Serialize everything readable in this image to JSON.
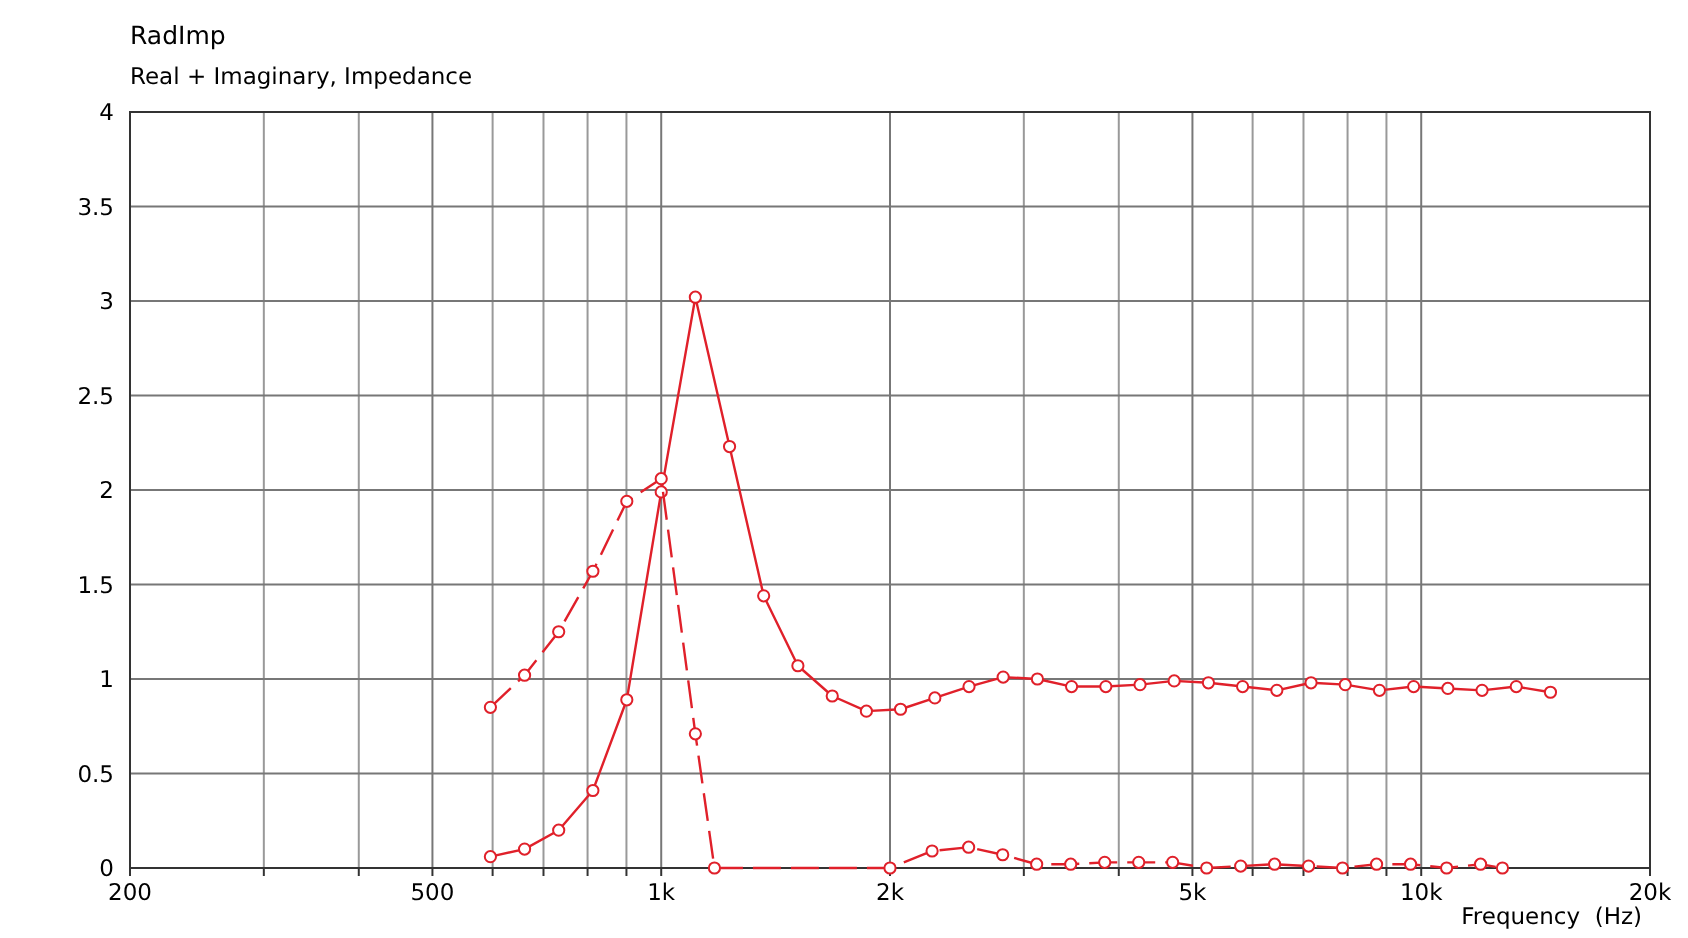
{
  "chart_data": {
    "type": "line",
    "title": "RadImp",
    "subtitle": "Real + Imaginary, Impedance",
    "xlabel": "Frequency  (Hz)",
    "log": "x",
    "grid": true,
    "marker": "circle",
    "xlim": [
      200,
      20000
    ],
    "ylim": [
      0,
      4
    ],
    "xticks": [
      {
        "value": 200,
        "label": "200"
      },
      {
        "value": 300,
        "label": null
      },
      {
        "value": 400,
        "label": null
      },
      {
        "value": 500,
        "label": "500"
      },
      {
        "value": 600,
        "label": null
      },
      {
        "value": 700,
        "label": null
      },
      {
        "value": 800,
        "label": null
      },
      {
        "value": 900,
        "label": null
      },
      {
        "value": 1000,
        "label": "1k"
      },
      {
        "value": 2000,
        "label": "2k"
      },
      {
        "value": 3000,
        "label": null
      },
      {
        "value": 4000,
        "label": null
      },
      {
        "value": 5000,
        "label": "5k"
      },
      {
        "value": 6000,
        "label": null
      },
      {
        "value": 7000,
        "label": null
      },
      {
        "value": 8000,
        "label": null
      },
      {
        "value": 9000,
        "label": null
      },
      {
        "value": 10000,
        "label": "10k"
      },
      {
        "value": 20000,
        "label": "20k"
      }
    ],
    "yticks": [
      0,
      0.5,
      1,
      1.5,
      2,
      2.5,
      3,
      3.5,
      4
    ],
    "series": [
      {
        "color": "#e0202a",
        "line_style": "solid",
        "x": [
          596,
          661,
          733,
          813,
          901,
          1000,
          1109,
          1230,
          1364,
          1513,
          1679,
          1862,
          2065,
          2291,
          2541,
          2818,
          3126,
          3467,
          3846,
          4266,
          4731,
          5248,
          5821,
          6457,
          7162,
          7944,
          8811,
          9773,
          10840,
          12024,
          13337,
          14793
        ],
        "values": [
          0.06,
          0.1,
          0.2,
          0.41,
          0.89,
          1.99,
          3.02,
          2.23,
          1.44,
          1.07,
          0.91,
          0.83,
          0.84,
          0.9,
          0.96,
          1.01,
          1.0,
          0.96,
          0.96,
          0.97,
          0.99,
          0.98,
          0.96,
          0.94,
          0.98,
          0.97,
          0.94,
          0.96,
          0.95,
          0.94,
          0.96,
          0.93
        ]
      },
      {
        "color": "#e0202a",
        "line_style": "dashed",
        "x": [
          596,
          661,
          733,
          813,
          901,
          1000,
          1109,
          1175,
          2000,
          2272,
          2538,
          2814,
          3119,
          3458,
          3833,
          4249,
          4709,
          5220,
          5787,
          6413,
          7109,
          7879,
          8735,
          9683,
          10800,
          11970,
          12790
        ],
        "values": [
          0.85,
          1.02,
          1.25,
          1.57,
          1.94,
          2.06,
          0.71,
          0,
          0,
          0.09,
          0.11,
          0.07,
          0.02,
          0.02,
          0.03,
          0.03,
          0.03,
          0,
          0.01,
          0.02,
          0.01,
          0,
          0.02,
          0.02,
          0,
          0.02,
          0
        ]
      }
    ]
  }
}
